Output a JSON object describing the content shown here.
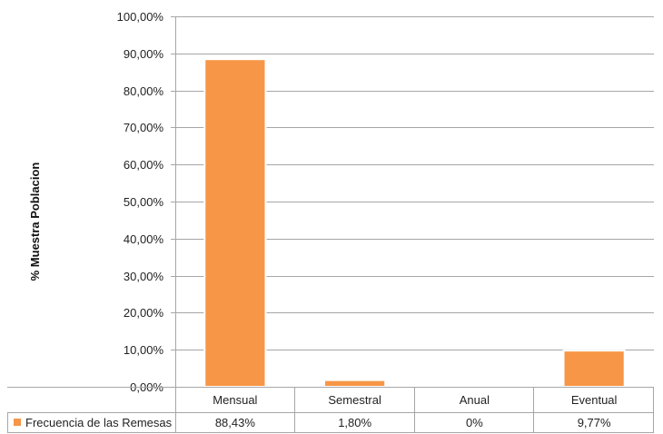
{
  "chart_data": {
    "type": "bar",
    "title": "",
    "xlabel": "",
    "ylabel": "% Muestra Poblacion",
    "categories": [
      "Mensual",
      "Semestral",
      "Anual",
      "Eventual"
    ],
    "series": [
      {
        "name": "Frecuencia de las Remesas",
        "values": [
          88.43,
          1.8,
          0,
          9.77
        ],
        "value_labels": [
          "88,43%",
          "1,80%",
          "0%",
          "9,77%"
        ],
        "color": "#F79646"
      }
    ],
    "ylim": [
      0,
      100
    ],
    "y_ticks": [
      0,
      10,
      20,
      30,
      40,
      50,
      60,
      70,
      80,
      90,
      100
    ],
    "y_tick_labels": [
      "0,00%",
      "10,00%",
      "20,00%",
      "30,00%",
      "40,00%",
      "50,00%",
      "60,00%",
      "70,00%",
      "80,00%",
      "90,00%",
      "100,00%"
    ],
    "grid": true,
    "legend": "data-table-below",
    "gridline_color": "#A6A6A6",
    "bar_border_color": "#FFFFFF"
  }
}
